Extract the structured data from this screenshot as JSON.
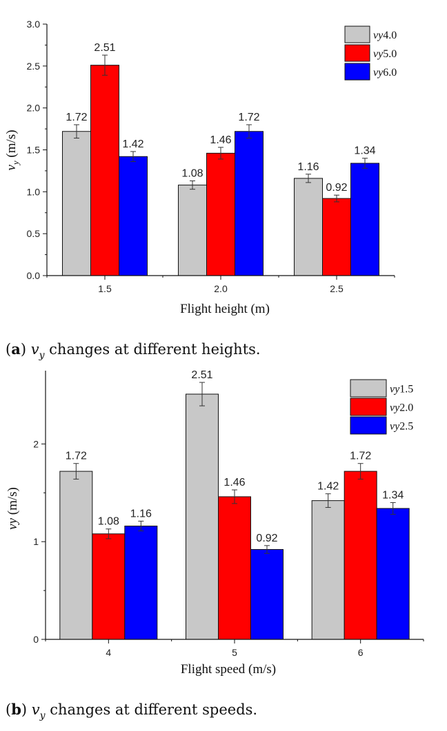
{
  "colors": {
    "gray": "#c8c8c8",
    "red": "#ff0000",
    "blue": "#0000ff"
  },
  "chart_data": [
    {
      "type": "bar",
      "categories": [
        "1.5",
        "2.0",
        "2.5"
      ],
      "series": [
        {
          "name": "vy4.0",
          "legend_var": "vy",
          "legend_num": "4.0",
          "color": "#c8c8c8",
          "values": [
            1.72,
            1.08,
            1.16
          ],
          "labels": [
            "1.72",
            "1.08",
            "1.16"
          ],
          "err": [
            0.08,
            0.05,
            0.05
          ]
        },
        {
          "name": "vy5.0",
          "legend_var": "vy",
          "legend_num": "5.0",
          "color": "#ff0000",
          "values": [
            2.51,
            1.46,
            0.92
          ],
          "labels": [
            "2.51",
            "1.46",
            "0.92"
          ],
          "err": [
            0.12,
            0.07,
            0.04
          ]
        },
        {
          "name": "vy6.0",
          "legend_var": "vy",
          "legend_num": "6.0",
          "color": "#0000ff",
          "values": [
            1.42,
            1.72,
            1.34
          ],
          "labels": [
            "1.42",
            "1.72",
            "1.34"
          ],
          "err": [
            0.06,
            0.08,
            0.06
          ]
        }
      ],
      "xlabel": "Flight height (m)",
      "ylabel_var": "v",
      "ylabel_sub": "y",
      "ylabel_unit": " (m/s)",
      "ylim": [
        0,
        3.0
      ],
      "yticks": [
        0,
        0.5,
        1.0,
        1.5,
        2.0,
        2.5,
        3.0
      ],
      "ytick_labels": [
        "0.0",
        "0.5",
        "1.0",
        "1.5",
        "2.0",
        "2.5",
        "3.0"
      ],
      "legend_position": "top-right"
    },
    {
      "type": "bar",
      "categories": [
        "4",
        "5",
        "6"
      ],
      "series": [
        {
          "name": "vy1.5",
          "legend_var": "vy",
          "legend_num": "1.5",
          "color": "#c8c8c8",
          "values": [
            1.72,
            2.51,
            1.42
          ],
          "labels": [
            "1.72",
            "2.51",
            "1.42"
          ],
          "err": [
            0.08,
            0.12,
            0.07
          ]
        },
        {
          "name": "vy2.0",
          "legend_var": "vy",
          "legend_num": "2.0",
          "color": "#ff0000",
          "values": [
            1.08,
            1.46,
            1.72
          ],
          "labels": [
            "1.08",
            "1.46",
            "1.72"
          ],
          "err": [
            0.05,
            0.07,
            0.08
          ]
        },
        {
          "name": "vy2.5",
          "legend_var": "vy",
          "legend_num": "2.5",
          "color": "#0000ff",
          "values": [
            1.16,
            0.92,
            1.34
          ],
          "labels": [
            "1.16",
            "0.92",
            "1.34"
          ],
          "err": [
            0.05,
            0.04,
            0.06
          ]
        }
      ],
      "xlabel": "Flight speed (m/s)",
      "ylabel_var": "vy",
      "ylabel_sub": "",
      "ylabel_unit": " (m/s)",
      "ylim": [
        0,
        2.75
      ],
      "yticks": [
        0,
        1,
        2
      ],
      "ytick_labels": [
        "0",
        "1",
        "2"
      ],
      "legend_position": "top-right"
    }
  ],
  "captions": [
    {
      "letter": "a",
      "var": "v",
      "sub": "y",
      "text": " changes at different heights."
    },
    {
      "letter": "b",
      "var": "v",
      "sub": "y",
      "text": " changes at different speeds."
    }
  ]
}
